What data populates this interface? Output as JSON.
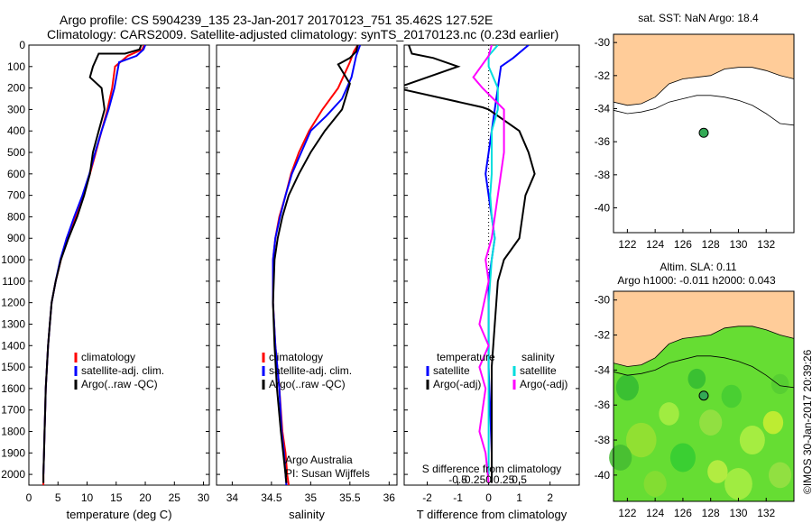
{
  "header": {
    "title_line1": "Argo profile: CS 5904239_135 23-Jan-2017 20170123_751 35.462S 127.52E",
    "title_line2": "Climatology: CARS2009. Satellite-adjusted climatology: synTS_20170123.nc (0.23d earlier)"
  },
  "colors": {
    "climatology": "#ff0000",
    "satellite": "#0000ff",
    "argo": "#000000",
    "salinity_satellite": "#00dddd",
    "salinity_argo": "#ff00ff",
    "land": "#ffcc99",
    "float_marker": "#33aa55"
  },
  "stamp": "©IMOS 30-Jan-2017 20:39:26",
  "chart_data": [
    {
      "id": "temperature",
      "type": "line",
      "xlabel": "temperature (deg C)",
      "ylim": [
        2050,
        0
      ],
      "xlim": [
        0,
        31
      ],
      "xticks": [
        0,
        5,
        10,
        15,
        20,
        25,
        30
      ],
      "yticks": [
        0,
        100,
        200,
        300,
        400,
        500,
        600,
        700,
        800,
        900,
        1000,
        1100,
        1200,
        1300,
        1400,
        1500,
        1600,
        1700,
        1800,
        1900,
        2000
      ],
      "legend": [
        "climatology",
        "satellite-adj. clim.",
        "Argo(..raw -QC)"
      ],
      "series": [
        {
          "name": "climatology",
          "points": [
            [
              19.8,
              0
            ],
            [
              19.5,
              20
            ],
            [
              17,
              50
            ],
            [
              14.8,
              100
            ],
            [
              14.3,
              200
            ],
            [
              13.5,
              300
            ],
            [
              12.5,
              400
            ],
            [
              11.5,
              500
            ],
            [
              10.5,
              600
            ],
            [
              9.3,
              700
            ],
            [
              8,
              800
            ],
            [
              6.5,
              900
            ],
            [
              5.5,
              1000
            ],
            [
              4.6,
              1100
            ],
            [
              3.9,
              1200
            ],
            [
              3.6,
              1300
            ],
            [
              3.3,
              1400
            ],
            [
              3.1,
              1500
            ],
            [
              2.9,
              1600
            ],
            [
              2.8,
              1700
            ],
            [
              2.7,
              1800
            ],
            [
              2.6,
              1900
            ],
            [
              2.5,
              2000
            ],
            [
              2.5,
              2050
            ]
          ]
        },
        {
          "name": "satellite-adj. clim.",
          "points": [
            [
              20,
              0
            ],
            [
              19.7,
              20
            ],
            [
              18.5,
              50
            ],
            [
              15.5,
              80
            ],
            [
              14.7,
              200
            ],
            [
              13.7,
              300
            ],
            [
              12.5,
              400
            ],
            [
              11.4,
              500
            ],
            [
              10.4,
              600
            ],
            [
              9.2,
              700
            ],
            [
              7.8,
              800
            ],
            [
              6.5,
              900
            ],
            [
              5.4,
              1000
            ],
            [
              4.6,
              1100
            ],
            [
              3.9,
              1200
            ],
            [
              3.6,
              1300
            ],
            [
              3.3,
              1400
            ],
            [
              3.1,
              1500
            ],
            [
              2.9,
              1600
            ],
            [
              2.8,
              1700
            ],
            [
              2.7,
              1800
            ],
            [
              2.6,
              1900
            ],
            [
              2.5,
              2000
            ]
          ]
        },
        {
          "name": "Argo(..raw -QC)",
          "points": [
            [
              19.3,
              0
            ],
            [
              19,
              20
            ],
            [
              16.5,
              40
            ],
            [
              12,
              40
            ],
            [
              11,
              100
            ],
            [
              10.5,
              150
            ],
            [
              12.5,
              200
            ],
            [
              13,
              300
            ],
            [
              12,
              400
            ],
            [
              11,
              500
            ],
            [
              10.5,
              600
            ],
            [
              9.5,
              700
            ],
            [
              8.3,
              800
            ],
            [
              6.8,
              900
            ],
            [
              5.5,
              1000
            ],
            [
              4.6,
              1100
            ],
            [
              3.9,
              1200
            ],
            [
              3.6,
              1300
            ],
            [
              3.3,
              1400
            ],
            [
              3.1,
              1500
            ],
            [
              2.9,
              1600
            ],
            [
              2.8,
              1700
            ],
            [
              2.7,
              1800
            ],
            [
              2.6,
              1900
            ],
            [
              2.5,
              2000
            ],
            [
              2.5,
              2040
            ]
          ]
        }
      ]
    },
    {
      "id": "salinity",
      "type": "line",
      "xlabel": "salinity",
      "ylim": [
        2050,
        0
      ],
      "xlim": [
        33.8,
        36.1
      ],
      "xticks": [
        34,
        34.5,
        35,
        35.5,
        36
      ],
      "legend": [
        "climatology",
        "satellite-adj. clim.",
        "Argo(..raw -QC)"
      ],
      "annotation": [
        "Argo Australia",
        "PI: Susan Wijffels"
      ],
      "series": [
        {
          "name": "climatology",
          "points": [
            [
              35.6,
              0
            ],
            [
              35.55,
              30
            ],
            [
              35.5,
              80
            ],
            [
              35.35,
              200
            ],
            [
              35.15,
              300
            ],
            [
              34.98,
              400
            ],
            [
              34.85,
              500
            ],
            [
              34.75,
              600
            ],
            [
              34.68,
              700
            ],
            [
              34.6,
              800
            ],
            [
              34.55,
              900
            ],
            [
              34.52,
              1000
            ],
            [
              34.52,
              1200
            ],
            [
              34.55,
              1400
            ],
            [
              34.6,
              1600
            ],
            [
              34.64,
              1800
            ],
            [
              34.68,
              1900
            ],
            [
              34.7,
              2000
            ],
            [
              34.72,
              2050
            ]
          ]
        },
        {
          "name": "satellite-adj. clim.",
          "points": [
            [
              35.63,
              0
            ],
            [
              35.58,
              50
            ],
            [
              35.52,
              150
            ],
            [
              35.4,
              250
            ],
            [
              35.2,
              330
            ],
            [
              35,
              400
            ],
            [
              34.88,
              500
            ],
            [
              34.76,
              600
            ],
            [
              34.68,
              700
            ],
            [
              34.61,
              800
            ],
            [
              34.55,
              900
            ],
            [
              34.52,
              1000
            ],
            [
              34.52,
              1200
            ],
            [
              34.55,
              1400
            ],
            [
              34.6,
              1600
            ],
            [
              34.63,
              1800
            ],
            [
              34.66,
              1900
            ],
            [
              34.68,
              2000
            ],
            [
              34.69,
              2050
            ]
          ]
        },
        {
          "name": "Argo(..raw -QC)",
          "points": [
            [
              35.6,
              0
            ],
            [
              35.58,
              30
            ],
            [
              35.5,
              60
            ],
            [
              35.35,
              90
            ],
            [
              35.5,
              180
            ],
            [
              35.4,
              300
            ],
            [
              35.18,
              400
            ],
            [
              35,
              500
            ],
            [
              34.85,
              600
            ],
            [
              34.72,
              700
            ],
            [
              34.64,
              800
            ],
            [
              34.58,
              900
            ],
            [
              34.54,
              1000
            ],
            [
              34.52,
              1200
            ],
            [
              34.54,
              1400
            ],
            [
              34.57,
              1600
            ],
            [
              34.62,
              1800
            ],
            [
              34.65,
              1900
            ],
            [
              34.68,
              2000
            ],
            [
              34.69,
              2040
            ]
          ]
        }
      ]
    },
    {
      "id": "differences",
      "type": "line",
      "xlabel": "T difference from climatology",
      "x2label": "S difference from climatology",
      "ylim": [
        2050,
        0
      ],
      "xlim": [
        -2.75,
        2.95
      ],
      "xticks": [
        -2,
        -1,
        0,
        1,
        2
      ],
      "x2ticks": [
        "-0.5",
        "-0.25",
        "0",
        "0.25",
        "0.5"
      ],
      "legend_temperature": [
        "temperature",
        "satellite",
        "Argo(-adj)"
      ],
      "legend_salinity": [
        "salinity",
        "satellite",
        "Argo(-adj)"
      ],
      "series": [
        {
          "name": "temperature satellite",
          "points": [
            [
              1.3,
              0
            ],
            [
              0.8,
              60
            ],
            [
              0.4,
              100
            ],
            [
              0.3,
              200
            ],
            [
              0.2,
              300
            ],
            [
              0.1,
              400
            ],
            [
              0,
              500
            ],
            [
              -0.1,
              600
            ],
            [
              0,
              700
            ],
            [
              0.1,
              800
            ],
            [
              0.2,
              900
            ],
            [
              0.1,
              1000
            ],
            [
              0,
              1100
            ],
            [
              0,
              1300
            ],
            [
              0,
              1500
            ],
            [
              0.05,
              1700
            ],
            [
              0.1,
              1900
            ],
            [
              0.1,
              2000
            ]
          ]
        },
        {
          "name": "temperature Argo(-adj)",
          "points": [
            [
              -2.6,
              0
            ],
            [
              -2.5,
              40
            ],
            [
              -1.8,
              60
            ],
            [
              -1,
              100
            ],
            [
              -3,
              200
            ],
            [
              -0.2,
              290
            ],
            [
              0,
              300
            ],
            [
              1,
              400
            ],
            [
              1.3,
              500
            ],
            [
              1.5,
              600
            ],
            [
              1.2,
              700
            ],
            [
              1.1,
              800
            ],
            [
              1,
              900
            ],
            [
              0.5,
              1000
            ],
            [
              0.3,
              1100
            ],
            [
              0.2,
              1300
            ],
            [
              0.1,
              1500
            ],
            [
              0.1,
              1700
            ],
            [
              0.1,
              1900
            ],
            [
              0.1,
              2040
            ]
          ]
        },
        {
          "name": "salinity satellite",
          "points": [
            [
              0.3,
              0
            ],
            [
              0,
              50
            ],
            [
              0,
              100
            ],
            [
              0.3,
              200
            ],
            [
              0.3,
              300
            ],
            [
              0.1,
              400
            ],
            [
              0.1,
              500
            ],
            [
              0.1,
              600
            ],
            [
              0.05,
              700
            ],
            [
              0.1,
              800
            ],
            [
              0.2,
              900
            ],
            [
              0.1,
              1000
            ],
            [
              0,
              1200
            ],
            [
              0,
              1400
            ],
            [
              0,
              1600
            ],
            [
              0,
              1800
            ],
            [
              0,
              2000
            ]
          ]
        },
        {
          "name": "salinity Argo(-adj)",
          "points": [
            [
              0.1,
              0
            ],
            [
              0,
              50
            ],
            [
              -0.5,
              150
            ],
            [
              -0.2,
              200
            ],
            [
              0.5,
              300
            ],
            [
              0.5,
              400
            ],
            [
              0.5,
              500
            ],
            [
              0.4,
              600
            ],
            [
              0.3,
              700
            ],
            [
              0.2,
              800
            ],
            [
              0.1,
              900
            ],
            [
              -0.1,
              1000
            ],
            [
              0,
              1100
            ],
            [
              -0.3,
              1300
            ],
            [
              0,
              1400
            ],
            [
              -0.3,
              1500
            ],
            [
              -0.1,
              1600
            ],
            [
              -0.2,
              1700
            ],
            [
              -0.3,
              1800
            ],
            [
              -0.1,
              1900
            ],
            [
              0,
              2040
            ]
          ]
        }
      ]
    },
    {
      "id": "sst-map",
      "type": "heatmap",
      "title": "sat. SST: NaN Argo: 18.4",
      "xlim": [
        121,
        134
      ],
      "ylim": [
        -41.5,
        -29.5
      ],
      "xticks": [
        122,
        124,
        126,
        128,
        130,
        132
      ],
      "yticks": [
        -30,
        -32,
        -34,
        -36,
        -38,
        -40
      ],
      "float_position": [
        127.5,
        -35.46
      ]
    },
    {
      "id": "sla-map",
      "type": "heatmap",
      "title": "Altim. SLA: 0.11",
      "subtitle": "Argo h1000: -0.011 h2000: 0.043",
      "xlim": [
        121,
        134
      ],
      "ylim": [
        -41.5,
        -29.5
      ],
      "xticks": [
        122,
        124,
        126,
        128,
        130,
        132
      ],
      "yticks": [
        -30,
        -32,
        -34,
        -36,
        -38,
        -40
      ],
      "float_position": [
        127.5,
        -35.46
      ]
    }
  ]
}
